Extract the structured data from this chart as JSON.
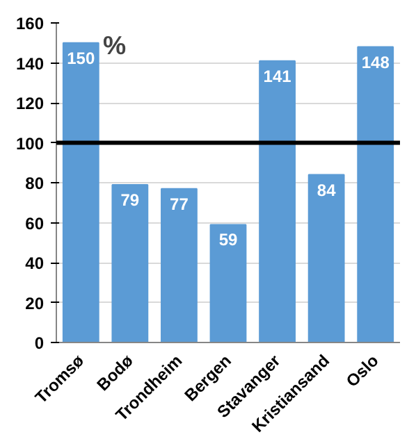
{
  "chart_data": {
    "type": "bar",
    "categories": [
      "Tromsø",
      "Bodø",
      "Trondheim",
      "Bergen",
      "Stavanger",
      "Kristiansand",
      "Oslo"
    ],
    "values": [
      150,
      79,
      77,
      59,
      141,
      84,
      148
    ],
    "color": "#5b9bd5",
    "data_labels": true,
    "ylim": [
      0,
      160
    ],
    "yticks": [
      0,
      20,
      40,
      60,
      80,
      100,
      120,
      140,
      160
    ],
    "grid": "y",
    "ref_lines": [
      {
        "axis": "y",
        "value": 100,
        "color": "#000000"
      }
    ],
    "annotations": [
      "%"
    ]
  }
}
